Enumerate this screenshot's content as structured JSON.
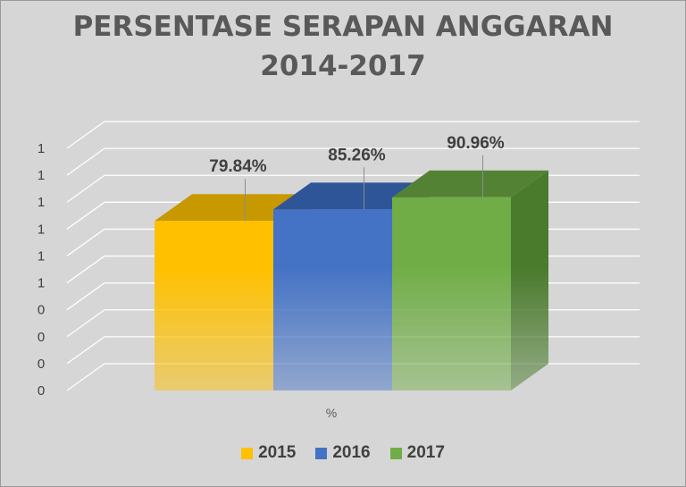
{
  "chart_data": {
    "type": "bar",
    "title_line1": "PERSENTASE SERAPAN ANGGARAN",
    "title_line2": "2014-2017",
    "xlabel": "%",
    "ytick_labels": [
      "0",
      "0",
      "0",
      "0",
      "1",
      "1",
      "1",
      "1",
      "1",
      "1"
    ],
    "ylim": [
      0,
      1
    ],
    "series": [
      {
        "name": "2015",
        "value": 0.7984,
        "label": "79.84%",
        "color": "#ffc000",
        "side_color": "#b48600",
        "top_color": "#c89800"
      },
      {
        "name": "2016",
        "value": 0.8526,
        "label": "85.26%",
        "color": "#4472c4",
        "side_color": "#2f5597",
        "top_color": "#2e5597"
      },
      {
        "name": "2017",
        "value": 0.9096,
        "label": "90.96%",
        "color": "#70ad47",
        "side_color": "#4a7a2c",
        "top_color": "#548235"
      }
    ],
    "grid": true,
    "legend_position": "bottom",
    "background_color": "#d6d6d6"
  }
}
